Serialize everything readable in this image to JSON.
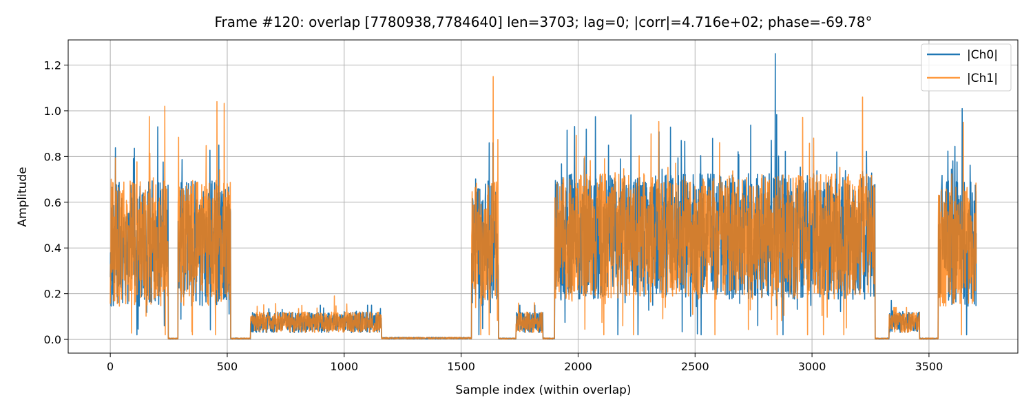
{
  "chart_data": {
    "type": "line",
    "title": "Frame #120: overlap [7780938,7784640]  len=3703; lag=0; |corr|=4.716e+02; phase=-69.78°",
    "xlabel": "Sample index (within overlap)",
    "ylabel": "Amplitude",
    "xlim": [
      -180,
      3880
    ],
    "ylim": [
      -0.06,
      1.31
    ],
    "xticks": [
      0,
      500,
      1000,
      1500,
      2000,
      2500,
      3000,
      3500
    ],
    "yticks": [
      0.0,
      0.2,
      0.4,
      0.6,
      0.8,
      1.0,
      1.2
    ],
    "xtick_labels": [
      "0",
      "500",
      "1000",
      "1500",
      "2000",
      "2500",
      "3000",
      "3500"
    ],
    "ytick_labels": [
      "0.0",
      "0.2",
      "0.4",
      "0.6",
      "0.8",
      "1.0",
      "1.2"
    ],
    "grid": true,
    "legend_position": "top-right",
    "n_samples": 3703,
    "segments": [
      {
        "start": 0,
        "end": 248,
        "kind": "burst",
        "mean": 0.42,
        "peak_ch0": 0.93,
        "peak_ch1": 1.02
      },
      {
        "start": 248,
        "end": 290,
        "kind": "silence",
        "mean": 0.004
      },
      {
        "start": 290,
        "end": 515,
        "kind": "burst",
        "mean": 0.42,
        "peak_ch0": 0.85,
        "peak_ch1": 1.04
      },
      {
        "start": 515,
        "end": 600,
        "kind": "silence",
        "mean": 0.004
      },
      {
        "start": 600,
        "end": 1160,
        "kind": "low",
        "mean": 0.075,
        "peak_ch0": 0.15,
        "peak_ch1": 0.19
      },
      {
        "start": 1160,
        "end": 1545,
        "kind": "silence",
        "mean": 0.006
      },
      {
        "start": 1545,
        "end": 1660,
        "kind": "burst",
        "mean": 0.42,
        "peak_ch0": 0.86,
        "peak_ch1": 1.15
      },
      {
        "start": 1660,
        "end": 1735,
        "kind": "silence",
        "mean": 0.004
      },
      {
        "start": 1735,
        "end": 1850,
        "kind": "low",
        "mean": 0.075,
        "peak_ch0": 0.15,
        "peak_ch1": 0.16
      },
      {
        "start": 1850,
        "end": 1900,
        "kind": "silence",
        "mean": 0.004
      },
      {
        "start": 1900,
        "end": 3270,
        "kind": "burst",
        "mean": 0.45,
        "peak_ch0": 1.25,
        "peak_ch1": 1.06
      },
      {
        "start": 3270,
        "end": 3330,
        "kind": "silence",
        "mean": 0.004
      },
      {
        "start": 3330,
        "end": 3460,
        "kind": "low",
        "mean": 0.075,
        "peak_ch0": 0.17,
        "peak_ch1": 0.14
      },
      {
        "start": 3460,
        "end": 3540,
        "kind": "silence",
        "mean": 0.004
      },
      {
        "start": 3540,
        "end": 3703,
        "kind": "burst",
        "mean": 0.42,
        "peak_ch0": 1.01,
        "peak_ch1": 0.95
      }
    ],
    "series": [
      {
        "name": "|Ch0|",
        "color": "#1f77b4"
      },
      {
        "name": "|Ch1|",
        "color": "#ff7f0e",
        "opacity": 0.8
      }
    ]
  }
}
